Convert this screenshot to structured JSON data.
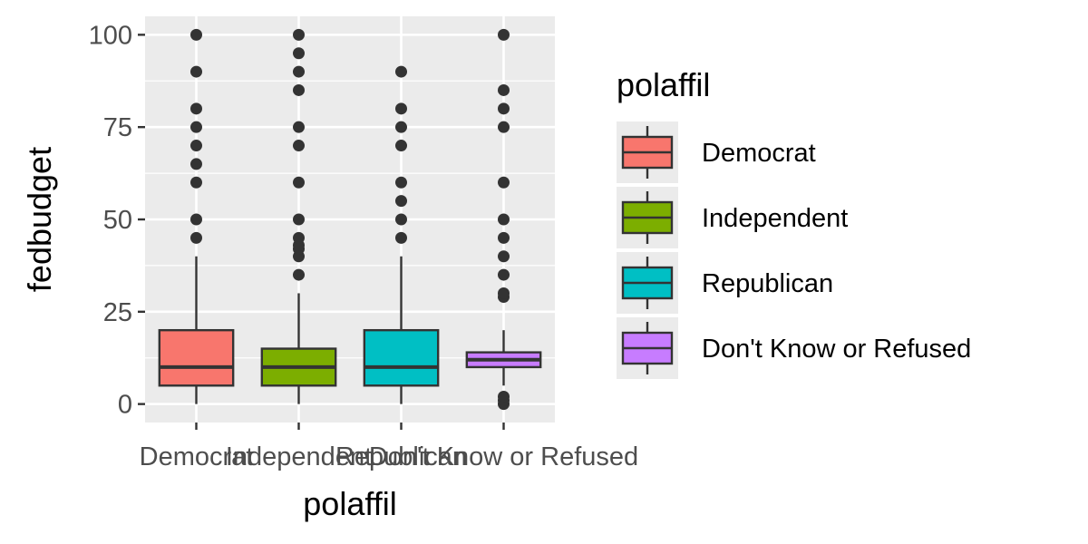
{
  "chart_data": {
    "type": "boxplot",
    "xlabel": "polaffil",
    "ylabel": "fedbudget",
    "ylim": [
      -5,
      105
    ],
    "yticks": [
      0,
      25,
      50,
      75,
      100
    ],
    "grid": true,
    "legend": {
      "title": "polaffil",
      "placement": "right",
      "entries": [
        "Democrat",
        "Independent",
        "Republican",
        "Don't Know or Refused"
      ]
    },
    "categories": [
      "Democrat",
      "Independent",
      "Republican",
      "Don't Know or Refused"
    ],
    "series": [
      {
        "color": "#F8766D",
        "whisker_low": 0,
        "q1": 5,
        "median": 10,
        "q3": 20,
        "whisker_high": 40,
        "outliers": [
          45,
          50,
          60,
          65,
          70,
          75,
          80,
          90,
          100
        ]
      },
      {
        "color": "#7CAE00",
        "whisker_low": 0,
        "q1": 5,
        "median": 10,
        "q3": 15,
        "whisker_high": 30,
        "outliers": [
          35,
          40,
          42,
          43,
          45,
          50,
          60,
          70,
          75,
          85,
          90,
          95,
          100
        ]
      },
      {
        "color": "#00BFC4",
        "whisker_low": 0,
        "q1": 5,
        "median": 10,
        "q3": 20,
        "whisker_high": 40,
        "outliers": [
          45,
          50,
          55,
          60,
          70,
          75,
          80,
          90
        ]
      },
      {
        "color": "#C77CFF",
        "whisker_low": 5,
        "q1": 10,
        "median": 12,
        "q3": 14,
        "whisker_high": 20,
        "outliers": [
          0,
          1,
          2,
          29,
          30,
          35,
          40,
          45,
          50,
          60,
          75,
          80,
          85,
          100
        ]
      }
    ]
  }
}
